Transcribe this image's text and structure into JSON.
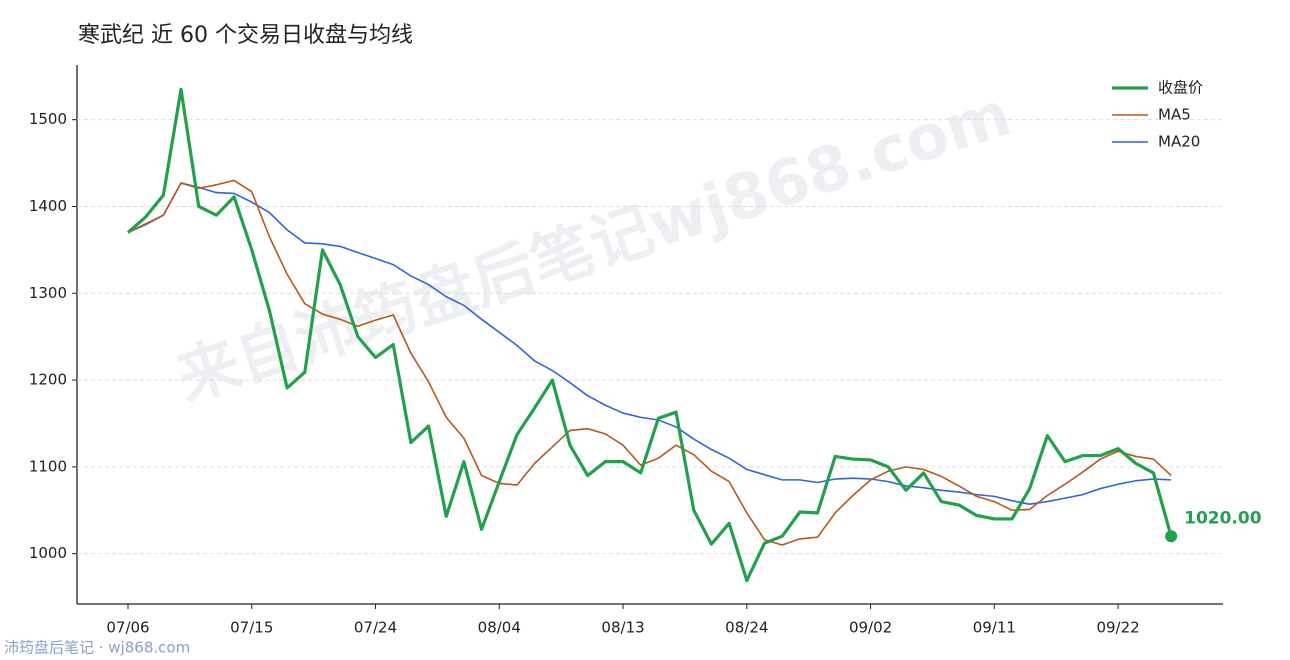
{
  "chart_data": {
    "type": "line",
    "title": "寒武纪 近 60 个交易日收盘与均线",
    "watermark": "来自沛筠盘后笔记wj868.com",
    "footer": "沛筠盘后笔记 · wj868.com",
    "categories": [
      "07/06",
      null,
      null,
      null,
      null,
      null,
      null,
      "07/15",
      null,
      null,
      null,
      null,
      null,
      null,
      "07/24",
      null,
      null,
      null,
      null,
      null,
      null,
      "08/04",
      null,
      null,
      null,
      null,
      null,
      null,
      "08/13",
      null,
      null,
      null,
      null,
      null,
      null,
      "08/24",
      null,
      null,
      null,
      null,
      null,
      null,
      "09/02",
      null,
      null,
      null,
      null,
      null,
      null,
      "09/11",
      null,
      null,
      null,
      null,
      null,
      null,
      "09/22",
      null,
      null,
      null
    ],
    "series": [
      {
        "name": "收盘价",
        "color": "#22a04b",
        "width": 3.2,
        "values": [
          1370,
          1388,
          1413,
          1535,
          1400,
          1390,
          1411,
          1350,
          1280,
          1191,
          1209,
          1350,
          1310,
          1250,
          1226,
          1241,
          1128,
          1147,
          1043,
          1106,
          1028,
          1083,
          1137,
          1168,
          1200,
          1125,
          1090,
          1106,
          1106,
          1093,
          1156,
          1163,
          1050,
          1011,
          1035,
          969,
          1012,
          1020,
          1048,
          1047,
          1112,
          1109,
          1108,
          1100,
          1073,
          1093,
          1060,
          1056,
          1044,
          1040,
          1040,
          1075,
          1136,
          1106,
          1113,
          1113,
          1121,
          1104,
          1093,
          1020
        ],
        "value_labels": [
          null,
          null,
          null,
          null,
          null,
          null,
          null,
          null,
          null,
          null,
          null,
          null,
          null,
          null,
          null,
          null,
          null,
          null,
          null,
          null,
          null,
          null,
          null,
          null,
          null,
          null,
          null,
          null,
          null,
          null,
          null,
          null,
          null,
          null,
          null,
          null,
          null,
          null,
          null,
          null,
          null,
          null,
          null,
          null,
          null,
          null,
          null,
          null,
          null,
          null,
          null,
          null,
          null,
          null,
          null,
          null,
          null,
          null,
          null,
          "1020.00"
        ]
      },
      {
        "name": "MA5",
        "color": "#b8581a",
        "width": 1.6,
        "values": [
          1370,
          1380,
          1390,
          1427,
          1421,
          1425,
          1430,
          1417,
          1365,
          1322,
          1288,
          1276,
          1270,
          1262,
          1269,
          1275,
          1231,
          1198,
          1157,
          1133,
          1090,
          1081,
          1079,
          1104,
          1123,
          1142,
          1144,
          1138,
          1125,
          1102,
          1110,
          1125,
          1114,
          1095,
          1083,
          1047,
          1016,
          1010,
          1017,
          1019,
          1047,
          1067,
          1085,
          1095,
          1100,
          1097,
          1089,
          1078,
          1066,
          1060,
          1050,
          1051,
          1067,
          1080,
          1094,
          1109,
          1118,
          1112,
          1109,
          1090
        ]
      },
      {
        "name": "MA20",
        "color": "#2f66d8",
        "width": 1.6,
        "values": [
          1370,
          1379,
          1390,
          1427,
          1422,
          1416,
          1415,
          1405,
          1393,
          1373,
          1358,
          1357,
          1354,
          1347,
          1340,
          1333,
          1320,
          1310,
          1296,
          1286,
          1270,
          1255,
          1240,
          1222,
          1211,
          1197,
          1182,
          1171,
          1162,
          1157,
          1154,
          1146,
          1132,
          1120,
          1110,
          1097,
          1091,
          1085,
          1085,
          1082,
          1086,
          1087,
          1086,
          1083,
          1078,
          1076,
          1073,
          1071,
          1068,
          1066,
          1061,
          1057,
          1060,
          1064,
          1068,
          1075,
          1080,
          1084,
          1086,
          1085
        ]
      }
    ],
    "ylim": [
      942,
      1563
    ],
    "yticks": [
      1000,
      1100,
      1200,
      1300,
      1400,
      1500
    ],
    "grid": true,
    "legend": "upper right"
  }
}
